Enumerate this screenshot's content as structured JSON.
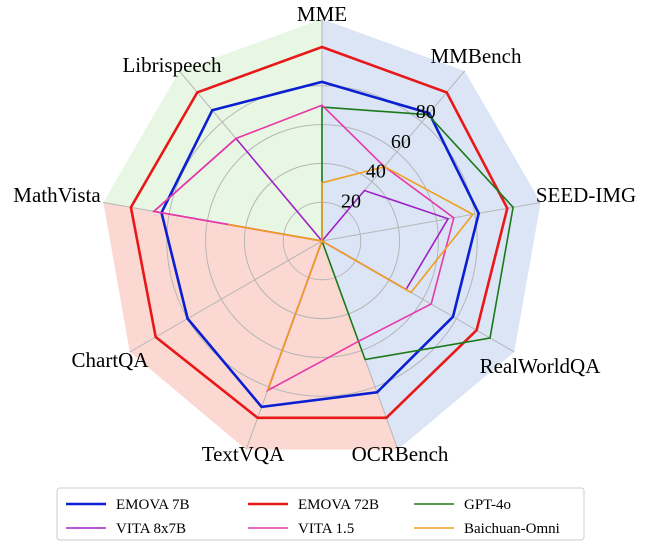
{
  "chart_data": {
    "type": "radar",
    "axes": [
      "MME",
      "MMBench",
      "SEED-IMG",
      "RealWorldQA",
      "OCRBench",
      "TextVQA",
      "ChartQA",
      "MathVista",
      "Librispeech"
    ],
    "rlim": [
      0,
      100
    ],
    "ticks": [
      20,
      40,
      60,
      80
    ],
    "tick_labels": [
      "20",
      "40",
      "60",
      "80"
    ],
    "grid": true,
    "legend_position": "bottom",
    "background_regions": [
      {
        "axes_span": [
          "MME",
          "OCRBench"
        ],
        "color": "#dbe5f6"
      },
      {
        "axes_span": [
          "OCRBench",
          "MathVista"
        ],
        "color": "#fbd9d2"
      },
      {
        "axes_span": [
          "MathVista",
          "MME"
        ],
        "color": "#e8f7e4"
      }
    ],
    "series": [
      {
        "name": "EMOVA 7B",
        "color": "#0a1fd1",
        "values": [
          82,
          86,
          82,
          78,
          83,
          91,
          80,
          84,
          88
        ]
      },
      {
        "name": "EMOVA 72B",
        "color": "#e81818",
        "values": [
          100,
          100,
          97,
          92,
          97,
          97,
          99,
          100,
          100
        ]
      },
      {
        "name": "GPT-4o",
        "color": "#1a7a1a",
        "values": [
          69,
          85,
          100,
          100,
          65,
          0,
          0,
          0,
          0
        ]
      },
      {
        "name": "VITA 8x7B",
        "color": "#a020c8",
        "values": [
          0,
          34,
          66,
          50,
          0,
          82,
          0,
          88,
          69
        ]
      },
      {
        "name": "VITA 1.5",
        "color": "#e838a8",
        "values": [
          70,
          50,
          69,
          65,
          55,
          82,
          0,
          88,
          69
        ]
      },
      {
        "name": "Baichuan-Omni",
        "color": "#f0a020",
        "values": [
          30,
          50,
          79,
          53,
          0,
          82,
          0,
          49,
          0
        ]
      }
    ]
  }
}
